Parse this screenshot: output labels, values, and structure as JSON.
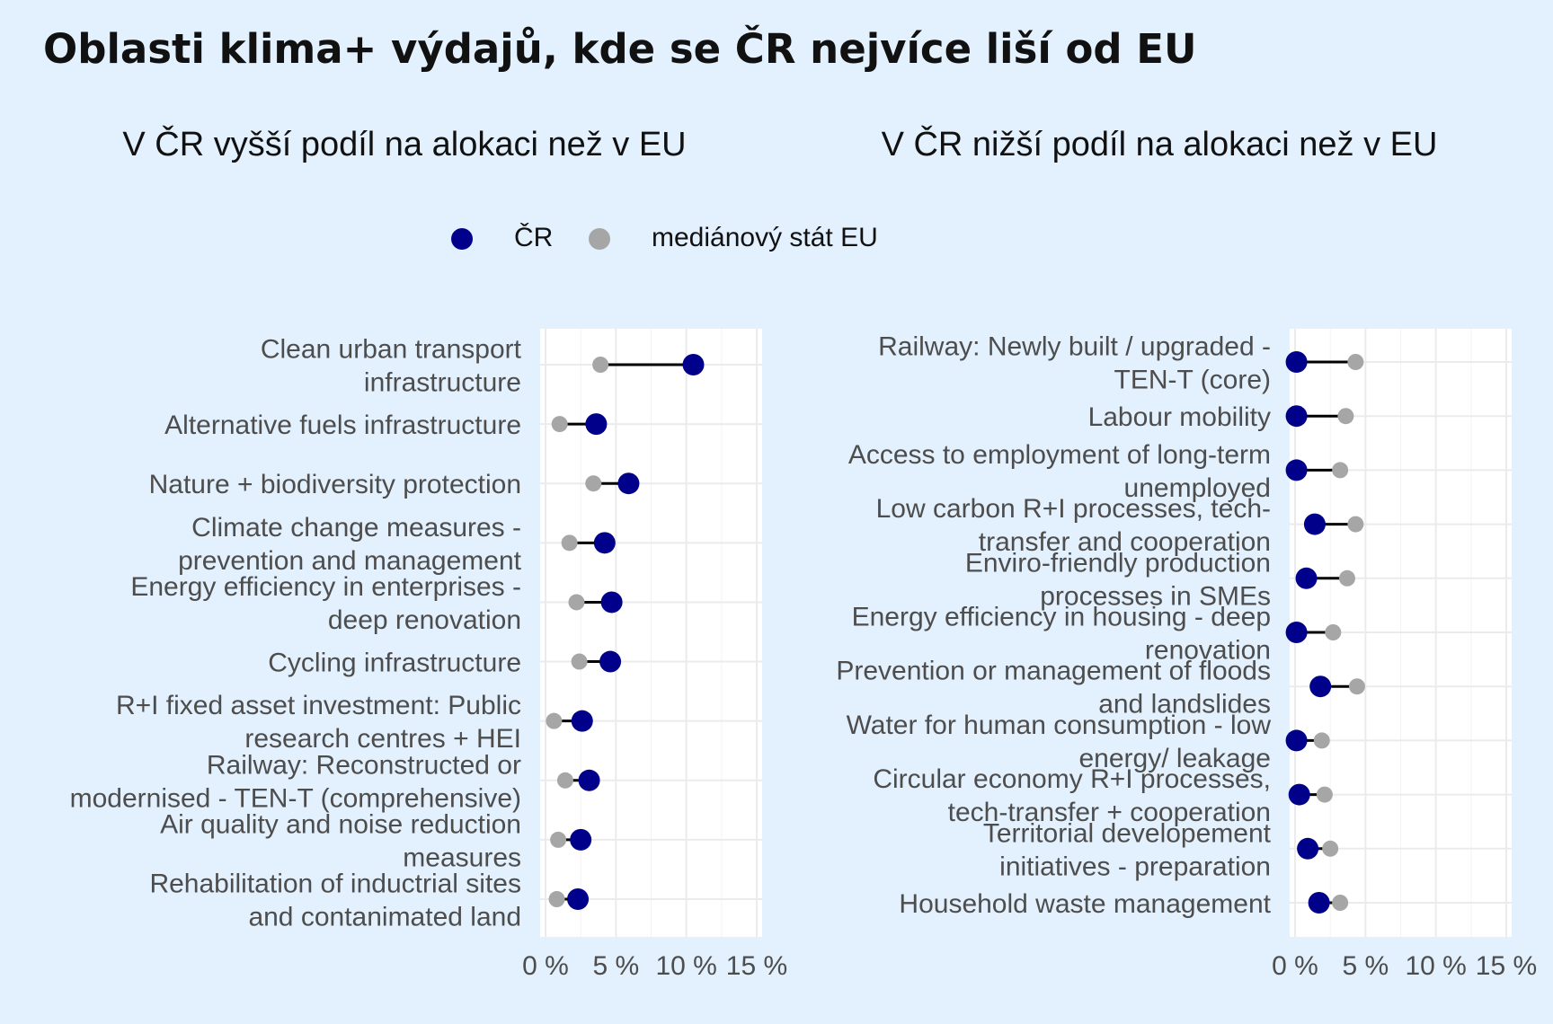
{
  "title": "Oblasti klima+ výdajů, kde se ČR nejvíce liší od EU",
  "legend": {
    "items": [
      {
        "label": "ČR",
        "color": "#00008b"
      },
      {
        "label": "mediánový stát EU",
        "color": "#a6a6a6"
      }
    ]
  },
  "chart_data": [
    {
      "type": "dot-range",
      "title": "V ČR vyšší podíl na alokaci než v EU",
      "xlim": [
        0,
        15
      ],
      "xticks": [
        "0 %",
        "5 %",
        "10 %",
        "15 %"
      ],
      "series_names": [
        "ČR",
        "mediánový stát EU"
      ],
      "categories": [
        {
          "label": [
            "Clean urban transport",
            "infrastructure"
          ],
          "cr": 10.5,
          "eu": 3.9
        },
        {
          "label": [
            "Alternative fuels infrastructure"
          ],
          "cr": 3.6,
          "eu": 1.0
        },
        {
          "label": [
            "Nature + biodiversity protection"
          ],
          "cr": 5.9,
          "eu": 3.4
        },
        {
          "label": [
            "Climate change measures -",
            "prevention and management"
          ],
          "cr": 4.2,
          "eu": 1.7
        },
        {
          "label": [
            "Energy efficiency in enterprises -",
            "deep renovation"
          ],
          "cr": 4.7,
          "eu": 2.2
        },
        {
          "label": [
            "Cycling infrastructure"
          ],
          "cr": 4.6,
          "eu": 2.4
        },
        {
          "label": [
            "R+I fixed asset investment: Public",
            "research centres + HEI"
          ],
          "cr": 2.6,
          "eu": 0.6
        },
        {
          "label": [
            "Railway: Reconstructed or",
            "modernised - TEN-T (comprehensive)"
          ],
          "cr": 3.1,
          "eu": 1.4
        },
        {
          "label": [
            "Air quality and noise reduction",
            "measures"
          ],
          "cr": 2.5,
          "eu": 0.9
        },
        {
          "label": [
            "Rehabilitation of inductrial sites",
            "and contanimated land"
          ],
          "cr": 2.3,
          "eu": 0.8
        }
      ]
    },
    {
      "type": "dot-range",
      "title": "V ČR nižší podíl na alokaci než v EU",
      "xlim": [
        0,
        15
      ],
      "xticks": [
        "0 %",
        "5 %",
        "10 %",
        "15 %"
      ],
      "series_names": [
        "ČR",
        "mediánový stát EU"
      ],
      "categories": [
        {
          "label": [
            "Railway: Newly built / upgraded -",
            "TEN-T (core)"
          ],
          "cr": 0.1,
          "eu": 4.3
        },
        {
          "label": [
            "Labour mobility"
          ],
          "cr": 0.1,
          "eu": 3.6
        },
        {
          "label": [
            "Access to employment of long-term",
            "unemployed"
          ],
          "cr": 0.1,
          "eu": 3.2
        },
        {
          "label": [
            "Low carbon R+I processes, tech-",
            "transfer and cooperation"
          ],
          "cr": 1.4,
          "eu": 4.3
        },
        {
          "label": [
            "Enviro-friendly production",
            "processes in SMEs"
          ],
          "cr": 0.8,
          "eu": 3.7
        },
        {
          "label": [
            "Energy efficiency in housing - deep",
            "renovation"
          ],
          "cr": 0.1,
          "eu": 2.7
        },
        {
          "label": [
            "Prevention or management of floods",
            "and landslides"
          ],
          "cr": 1.8,
          "eu": 4.4
        },
        {
          "label": [
            "Water for human consumption - low",
            "energy/ leakage"
          ],
          "cr": 0.1,
          "eu": 1.9
        },
        {
          "label": [
            "Circular economy R+I processes,",
            "tech-transfer + cooperation"
          ],
          "cr": 0.3,
          "eu": 2.1
        },
        {
          "label": [
            "Territorial developement",
            "initiatives - preparation"
          ],
          "cr": 0.9,
          "eu": 2.5
        },
        {
          "label": [
            "Household waste management"
          ],
          "cr": 1.7,
          "eu": 3.2
        }
      ]
    }
  ]
}
